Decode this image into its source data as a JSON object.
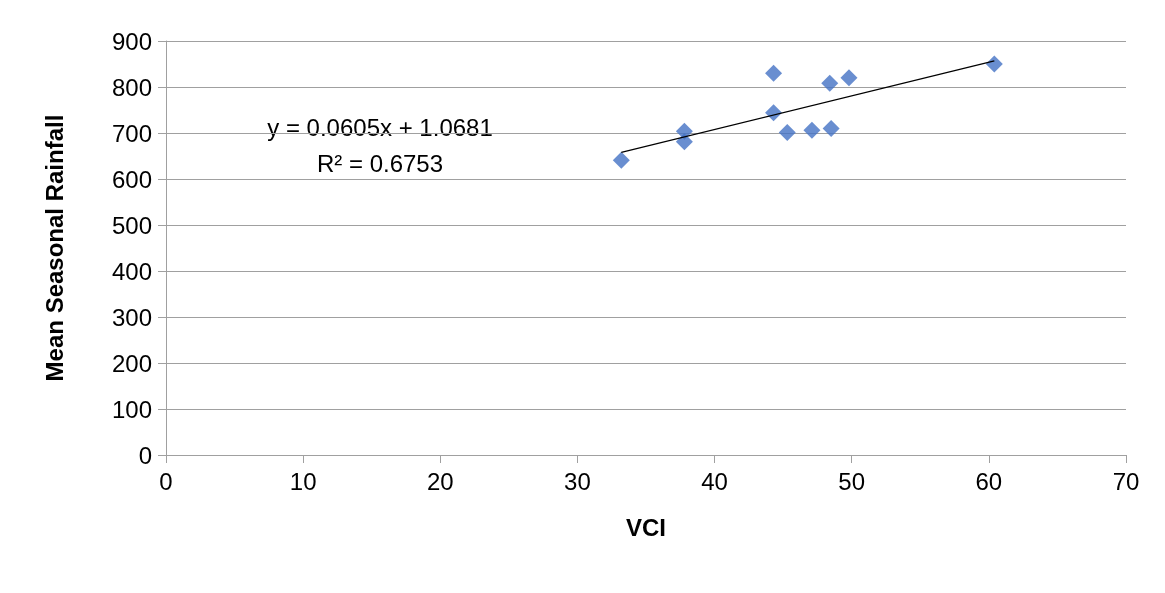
{
  "chart_data": {
    "type": "scatter",
    "xlabel": "VCI",
    "ylabel": "Mean Seasonal Rainfall",
    "xlim": [
      0,
      70
    ],
    "xticks": [
      0,
      10,
      20,
      30,
      40,
      50,
      60,
      70
    ],
    "ylim": [
      0,
      900
    ],
    "yticks": [
      0,
      100,
      200,
      300,
      400,
      500,
      600,
      700,
      800,
      900
    ],
    "grid": "y",
    "marker": "diamond",
    "series": [
      {
        "color": "#4472c4",
        "x": [
          33.2,
          37.8,
          37.8,
          44.3,
          44.3,
          45.3,
          47.1,
          48.4,
          48.5,
          49.8,
          60.4
        ],
        "values": [
          641,
          704,
          681,
          830,
          744,
          701,
          706,
          808,
          710,
          820,
          850
        ]
      },
      {
        "type": "line",
        "color": "#000000",
        "x": [
          33.2,
          60.4
        ],
        "values": [
          658,
          857
        ],
        "marker": "none"
      }
    ],
    "annotations": [
      "y = 0.0605x + 1.0681",
      "R² = 0.6753"
    ]
  }
}
